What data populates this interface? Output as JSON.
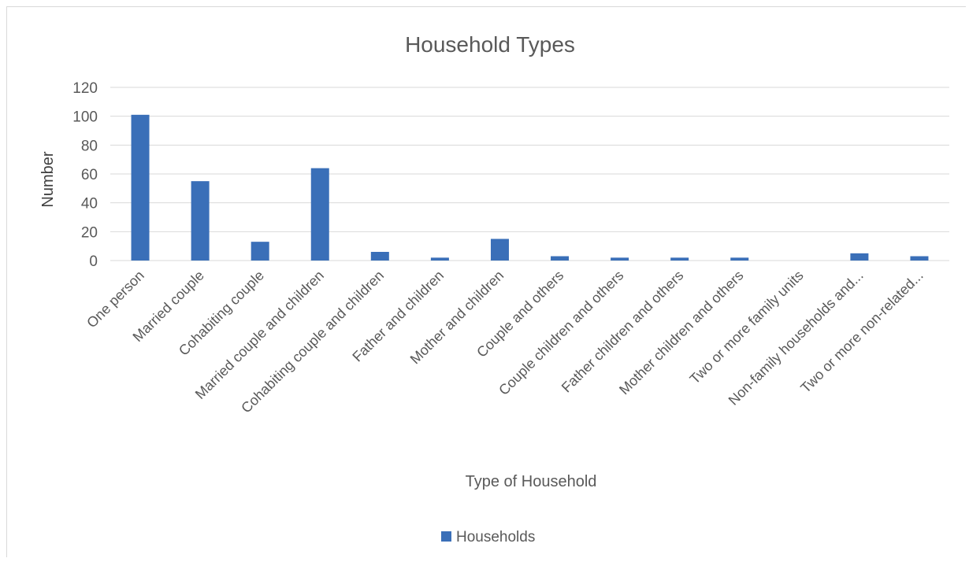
{
  "chart_data": {
    "type": "bar",
    "title": "Household Types",
    "xlabel": "Type of Household",
    "ylabel": "Number",
    "ylim": [
      0,
      120
    ],
    "yticks": [
      0,
      20,
      40,
      60,
      80,
      100,
      120
    ],
    "grid": true,
    "legend_position": "bottom",
    "categories": [
      "One person",
      "Married couple",
      "Cohabiting couple",
      "Married couple and children",
      "Cohabiting couple and children",
      "Father and children",
      "Mother and children",
      "Couple and others",
      "Couple children and others",
      "Father children and others",
      "Mother children and others",
      "Two or more family units",
      "Non-family households and...",
      "Two or more non-related..."
    ],
    "series": [
      {
        "name": "Households",
        "color": "#3a6fb8",
        "values": [
          101,
          55,
          13,
          64,
          6,
          2,
          15,
          3,
          2,
          2,
          2,
          0,
          5,
          3
        ]
      }
    ]
  }
}
